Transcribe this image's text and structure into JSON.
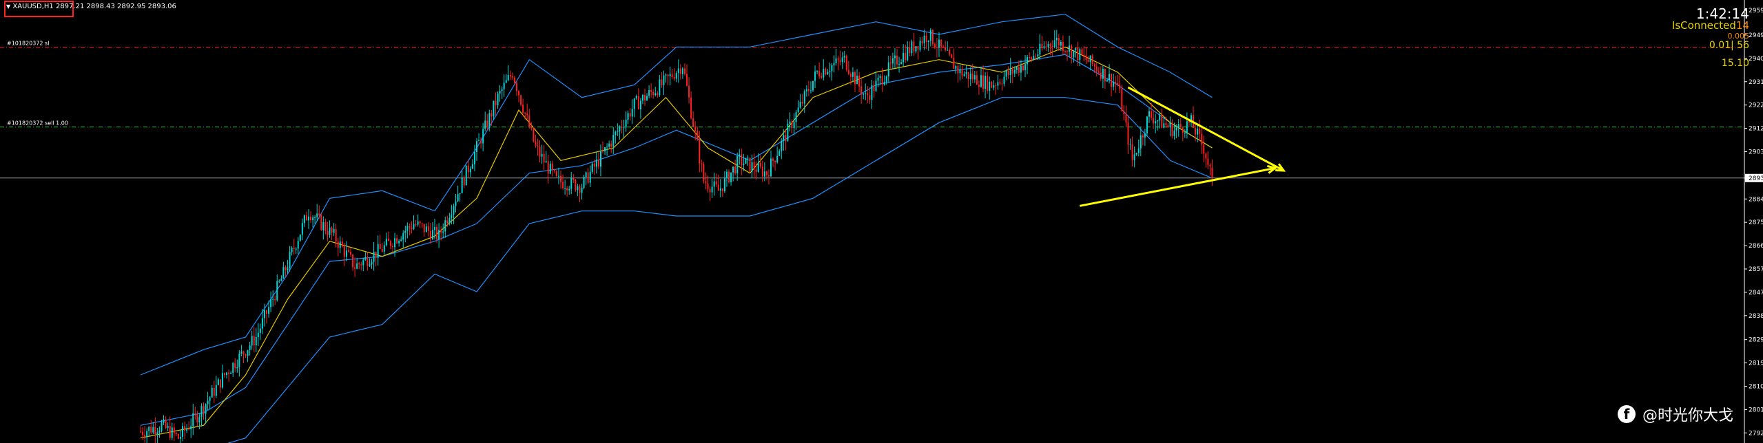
{
  "header": {
    "symbol_info": "XAUUSD,H1  2897.21 2898.43 2892.95 2893.06"
  },
  "hud": {
    "time": "1:42:14",
    "status": "IsConnected",
    "status_suffix": "14",
    "spread": "0.005",
    "lot_info": "0.01| 56",
    "value": "15.10"
  },
  "order_lines": [
    {
      "label": "#101820372 sl",
      "price": 2944.9,
      "color": "#ff2a2a"
    },
    {
      "label": "#101820372 sell 1.00",
      "price": 2913.3,
      "color": "#2ecc40"
    }
  ],
  "watermark": {
    "icon": "facebook-icon",
    "text": "@时光你大戈"
  },
  "colors": {
    "background": "#000000",
    "bull": "#00d8d8",
    "bear": "#ff2020",
    "bollinger": "#1e90ff",
    "ma": "#e6c800",
    "trendline": "#ffff00",
    "axis_text": "#ffffff"
  },
  "chart_data": {
    "type": "candlestick",
    "title": "",
    "symbol": "XAUUSD",
    "timeframe": "H1",
    "ylim": [
      2788.0,
      2962.0
    ],
    "y_ticks": [
      "2959.50",
      "2949.75",
      "2940.50",
      "2931.25",
      "2922.00",
      "2912.75",
      "2903.50",
      "2893.06",
      "2884.75",
      "2875.50",
      "2866.25",
      "2857.00",
      "2847.75",
      "2838.50",
      "2829.00",
      "2819.75",
      "2810.50",
      "2801.25",
      "2792.00"
    ],
    "current_price": 2893.06,
    "last_bar": {
      "open": 2897.21,
      "high": 2898.43,
      "low": 2892.95,
      "close": 2893.06
    },
    "price_path": [
      {
        "bar": 0,
        "price": 2792.5
      },
      {
        "bar": 10,
        "price": 2795.0
      },
      {
        "bar": 18,
        "price": 2790.0
      },
      {
        "bar": 28,
        "price": 2800.0
      },
      {
        "bar": 40,
        "price": 2815.0
      },
      {
        "bar": 55,
        "price": 2830.0
      },
      {
        "bar": 68,
        "price": 2855.0
      },
      {
        "bar": 80,
        "price": 2880.0
      },
      {
        "bar": 92,
        "price": 2870.0
      },
      {
        "bar": 102,
        "price": 2858.0
      },
      {
        "bar": 115,
        "price": 2865.0
      },
      {
        "bar": 130,
        "price": 2875.0
      },
      {
        "bar": 142,
        "price": 2870.0
      },
      {
        "bar": 155,
        "price": 2895.0
      },
      {
        "bar": 170,
        "price": 2925.0
      },
      {
        "bar": 177,
        "price": 2935.0
      },
      {
        "bar": 188,
        "price": 2905.0
      },
      {
        "bar": 198,
        "price": 2892.0
      },
      {
        "bar": 210,
        "price": 2890.0
      },
      {
        "bar": 222,
        "price": 2905.0
      },
      {
        "bar": 235,
        "price": 2922.0
      },
      {
        "bar": 248,
        "price": 2930.0
      },
      {
        "bar": 258,
        "price": 2938.0
      },
      {
        "bar": 268,
        "price": 2892.0
      },
      {
        "bar": 275,
        "price": 2888.0
      },
      {
        "bar": 285,
        "price": 2900.0
      },
      {
        "bar": 298,
        "price": 2895.0
      },
      {
        "bar": 310,
        "price": 2915.0
      },
      {
        "bar": 322,
        "price": 2935.0
      },
      {
        "bar": 335,
        "price": 2940.0
      },
      {
        "bar": 345,
        "price": 2925.0
      },
      {
        "bar": 360,
        "price": 2940.0
      },
      {
        "bar": 375,
        "price": 2950.0
      },
      {
        "bar": 390,
        "price": 2935.0
      },
      {
        "bar": 405,
        "price": 2930.0
      },
      {
        "bar": 420,
        "price": 2938.0
      },
      {
        "bar": 435,
        "price": 2948.0
      },
      {
        "bar": 450,
        "price": 2940.0
      },
      {
        "bar": 465,
        "price": 2930.0
      },
      {
        "bar": 472,
        "price": 2900.0
      },
      {
        "bar": 480,
        "price": 2918.0
      },
      {
        "bar": 492,
        "price": 2912.0
      },
      {
        "bar": 500,
        "price": 2915.0
      },
      {
        "bar": 506,
        "price": 2905.0
      },
      {
        "bar": 510,
        "price": 2893.06
      }
    ],
    "bollinger": {
      "upper": [
        {
          "bar": 0,
          "price": 2815
        },
        {
          "bar": 30,
          "price": 2825
        },
        {
          "bar": 50,
          "price": 2830
        },
        {
          "bar": 70,
          "price": 2855
        },
        {
          "bar": 90,
          "price": 2885
        },
        {
          "bar": 115,
          "price": 2888
        },
        {
          "bar": 140,
          "price": 2880
        },
        {
          "bar": 160,
          "price": 2905
        },
        {
          "bar": 185,
          "price": 2940
        },
        {
          "bar": 210,
          "price": 2925
        },
        {
          "bar": 235,
          "price": 2930
        },
        {
          "bar": 255,
          "price": 2945
        },
        {
          "bar": 290,
          "price": 2945
        },
        {
          "bar": 320,
          "price": 2950
        },
        {
          "bar": 350,
          "price": 2955
        },
        {
          "bar": 380,
          "price": 2950
        },
        {
          "bar": 410,
          "price": 2955
        },
        {
          "bar": 440,
          "price": 2958
        },
        {
          "bar": 465,
          "price": 2945
        },
        {
          "bar": 490,
          "price": 2935
        },
        {
          "bar": 510,
          "price": 2925
        }
      ],
      "middle": [
        {
          "bar": 0,
          "price": 2795
        },
        {
          "bar": 30,
          "price": 2800
        },
        {
          "bar": 50,
          "price": 2810
        },
        {
          "bar": 70,
          "price": 2835
        },
        {
          "bar": 90,
          "price": 2860
        },
        {
          "bar": 115,
          "price": 2862
        },
        {
          "bar": 140,
          "price": 2868
        },
        {
          "bar": 160,
          "price": 2875
        },
        {
          "bar": 185,
          "price": 2895
        },
        {
          "bar": 210,
          "price": 2898
        },
        {
          "bar": 235,
          "price": 2905
        },
        {
          "bar": 255,
          "price": 2912
        },
        {
          "bar": 290,
          "price": 2900
        },
        {
          "bar": 320,
          "price": 2915
        },
        {
          "bar": 350,
          "price": 2930
        },
        {
          "bar": 380,
          "price": 2935
        },
        {
          "bar": 410,
          "price": 2938
        },
        {
          "bar": 440,
          "price": 2942
        },
        {
          "bar": 465,
          "price": 2930
        },
        {
          "bar": 490,
          "price": 2915
        },
        {
          "bar": 510,
          "price": 2905
        }
      ],
      "lower": [
        {
          "bar": 0,
          "price": 2785
        },
        {
          "bar": 30,
          "price": 2785
        },
        {
          "bar": 50,
          "price": 2790
        },
        {
          "bar": 70,
          "price": 2810
        },
        {
          "bar": 90,
          "price": 2830
        },
        {
          "bar": 115,
          "price": 2835
        },
        {
          "bar": 140,
          "price": 2855
        },
        {
          "bar": 160,
          "price": 2848
        },
        {
          "bar": 185,
          "price": 2875
        },
        {
          "bar": 210,
          "price": 2880
        },
        {
          "bar": 235,
          "price": 2880
        },
        {
          "bar": 255,
          "price": 2878
        },
        {
          "bar": 290,
          "price": 2878
        },
        {
          "bar": 320,
          "price": 2885
        },
        {
          "bar": 350,
          "price": 2900
        },
        {
          "bar": 380,
          "price": 2915
        },
        {
          "bar": 410,
          "price": 2925
        },
        {
          "bar": 440,
          "price": 2925
        },
        {
          "bar": 465,
          "price": 2922
        },
        {
          "bar": 490,
          "price": 2900
        },
        {
          "bar": 510,
          "price": 2893
        }
      ]
    },
    "moving_average": [
      {
        "bar": 0,
        "price": 2790
      },
      {
        "bar": 30,
        "price": 2795
      },
      {
        "bar": 50,
        "price": 2815
      },
      {
        "bar": 70,
        "price": 2845
      },
      {
        "bar": 90,
        "price": 2868
      },
      {
        "bar": 115,
        "price": 2862
      },
      {
        "bar": 140,
        "price": 2870
      },
      {
        "bar": 160,
        "price": 2885
      },
      {
        "bar": 180,
        "price": 2920
      },
      {
        "bar": 200,
        "price": 2900
      },
      {
        "bar": 225,
        "price": 2905
      },
      {
        "bar": 250,
        "price": 2925
      },
      {
        "bar": 270,
        "price": 2905
      },
      {
        "bar": 290,
        "price": 2895
      },
      {
        "bar": 320,
        "price": 2925
      },
      {
        "bar": 350,
        "price": 2935
      },
      {
        "bar": 380,
        "price": 2940
      },
      {
        "bar": 410,
        "price": 2935
      },
      {
        "bar": 440,
        "price": 2945
      },
      {
        "bar": 465,
        "price": 2935
      },
      {
        "bar": 490,
        "price": 2915
      },
      {
        "bar": 510,
        "price": 2905
      }
    ],
    "trendlines": [
      {
        "from": {
          "bar": 470,
          "price": 2929.0
        },
        "to": {
          "bar": 544,
          "price": 2896.0
        },
        "color": "#ffff00"
      },
      {
        "from": {
          "bar": 447,
          "price": 2882.0
        },
        "to": {
          "bar": 540,
          "price": 2897.0
        },
        "color": "#ffff00"
      }
    ]
  }
}
